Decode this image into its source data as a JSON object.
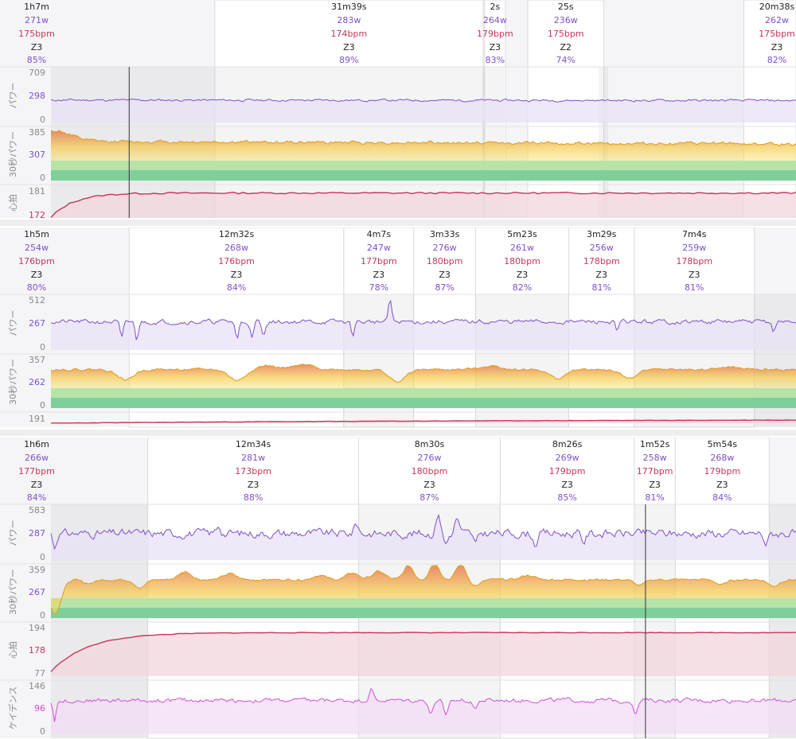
{
  "chart_data": [
    {
      "type": "line",
      "x_range": [
        0,
        100
      ],
      "panel_summary": {
        "duration": "1h7m",
        "power": "271w",
        "hr": "175bpm",
        "zone": "Z3",
        "pct": "85%"
      },
      "laps": [
        {
          "start": 22,
          "end": 58,
          "duration": "31m39s",
          "power": "283w",
          "hr": "174bpm",
          "zone": "Z3",
          "pct": "89%"
        },
        {
          "start": 58.2,
          "end": 61,
          "duration": "2s",
          "power": "264w",
          "hr": "179bpm",
          "zone": "Z3",
          "pct": "83%"
        },
        {
          "start": 64,
          "end": 74.2,
          "duration": "25s",
          "power": "236w",
          "hr": "175bpm",
          "zone": "Z2",
          "pct": "74%"
        },
        {
          "start": 93,
          "end": 100,
          "duration": "20m38s",
          "power": "262w",
          "hr": "175bpm",
          "zone": "Z3",
          "pct": "82%"
        }
      ],
      "shaded_ranges": [
        [
          0,
          60.8
        ],
        [
          73.5,
          74.8
        ]
      ],
      "cursor_x": 10.5,
      "tracks": [
        {
          "id": "power",
          "label": "パワー",
          "ticks": [
            "709",
            "298",
            "0"
          ],
          "ymin": 0,
          "ymax": 709,
          "style": "power",
          "height": 72,
          "series": {
            "base": 294,
            "drift": -6,
            "noise": 12,
            "spikes": [],
            "seed": 11
          }
        },
        {
          "id": "power30",
          "label": "30秒パワー",
          "ticks": [
            "385",
            "307",
            "0"
          ],
          "ymin": 0,
          "ymax": 385,
          "style": "zone",
          "height": 70,
          "series": {
            "base": 288,
            "drift": -20,
            "noise": 9,
            "spikes": [
              [
                0.5,
                78,
                3
              ]
            ],
            "seed": 12
          }
        },
        {
          "id": "hr",
          "label": "心拍",
          "ticks": [
            "181",
            "172"
          ],
          "ymin": 165,
          "ymax": 182,
          "style": "hr",
          "height": 46,
          "series": {
            "start": 166,
            "plateau": 178.5,
            "rise": 3,
            "noise": 0.08,
            "seed": 13
          }
        }
      ]
    },
    {
      "type": "line",
      "x_range": [
        0,
        100
      ],
      "panel_summary": {
        "duration": "1h5m",
        "power": "254w",
        "hr": "176bpm",
        "zone": "Z3",
        "pct": "80%"
      },
      "laps": [
        {
          "start": 10.5,
          "end": 39.3,
          "duration": "12m32s",
          "power": "268w",
          "hr": "176bpm",
          "zone": "Z3",
          "pct": "84%"
        },
        {
          "start": 39.3,
          "end": 48.7,
          "duration": "4m7s",
          "power": "247w",
          "hr": "177bpm",
          "zone": "Z3",
          "pct": "78%"
        },
        {
          "start": 48.7,
          "end": 57,
          "duration": "3m33s",
          "power": "276w",
          "hr": "180bpm",
          "zone": "Z3",
          "pct": "87%"
        },
        {
          "start": 57,
          "end": 69.5,
          "duration": "5m23s",
          "power": "261w",
          "hr": "180bpm",
          "zone": "Z3",
          "pct": "82%"
        },
        {
          "start": 69.5,
          "end": 78.3,
          "duration": "3m29s",
          "power": "256w",
          "hr": "178bpm",
          "zone": "Z3",
          "pct": "81%"
        },
        {
          "start": 78.3,
          "end": 94.4,
          "duration": "7m4s",
          "power": "259w",
          "hr": "178bpm",
          "zone": "Z3",
          "pct": "81%"
        }
      ],
      "shaded_ranges": [
        [
          39.3,
          48.7
        ],
        [
          57,
          69.5
        ],
        [
          78.3,
          100
        ]
      ],
      "tracks": [
        {
          "id": "power",
          "label": "パワー",
          "ticks": [
            "512",
            "267",
            "0"
          ],
          "ymin": 0,
          "ymax": 512,
          "style": "power",
          "height": 72,
          "series": {
            "base": 267,
            "drift": 0,
            "noise": 18,
            "spikes": [
              [
                9.5,
                -170,
                0.3
              ],
              [
                11.5,
                -170,
                0.3
              ],
              [
                25,
                -165,
                0.3
              ],
              [
                27,
                -160,
                0.3
              ],
              [
                28.5,
                -140,
                0.3
              ],
              [
                40.5,
                -120,
                0.3
              ],
              [
                45.5,
                210,
                0.3
              ],
              [
                76,
                -100,
                0.3
              ],
              [
                97,
                -90,
                0.3
              ]
            ],
            "seed": 21
          }
        },
        {
          "id": "power30",
          "label": "30秒パワー",
          "ticks": [
            "357",
            "262",
            "0"
          ],
          "ymin": 0,
          "ymax": 357,
          "style": "zone",
          "height": 70,
          "series": {
            "base": 262,
            "drift": 0,
            "noise": 6,
            "spikes": [
              [
                10,
                -70,
                1.5
              ],
              [
                25,
                -75,
                1.5
              ],
              [
                29,
                25,
                2
              ],
              [
                34,
                30,
                2
              ],
              [
                46.5,
                -85,
                1.5
              ],
              [
                59,
                25,
                2
              ],
              [
                68,
                -60,
                1.5
              ],
              [
                77.5,
                -60,
                1.5
              ],
              [
                91,
                15,
                2
              ]
            ],
            "seed": 22
          }
        },
        {
          "id": "hr",
          "label": "",
          "ticks": [
            "191"
          ],
          "ymin": 170,
          "ymax": 195,
          "style": "hr",
          "height": 16,
          "series": {
            "start": 170,
            "plateau": 180,
            "rise": 60,
            "noise": 0.1,
            "seed": 23
          }
        }
      ]
    },
    {
      "type": "line",
      "x_range": [
        0,
        100
      ],
      "panel_summary": {
        "duration": "1h6m",
        "power": "266w",
        "hr": "177bpm",
        "zone": "Z3",
        "pct": "84%"
      },
      "laps": [
        {
          "start": 13,
          "end": 41.3,
          "duration": "12m34s",
          "power": "281w",
          "hr": "173bpm",
          "zone": "Z3",
          "pct": "88%"
        },
        {
          "start": 41.3,
          "end": 60.3,
          "duration": "8m30s",
          "power": "276w",
          "hr": "180bpm",
          "zone": "Z3",
          "pct": "87%"
        },
        {
          "start": 60.3,
          "end": 78.3,
          "duration": "8m26s",
          "power": "269w",
          "hr": "179bpm",
          "zone": "Z3",
          "pct": "85%"
        },
        {
          "start": 78.3,
          "end": 83.8,
          "duration": "1m52s",
          "power": "258w",
          "hr": "177bpm",
          "zone": "Z3",
          "pct": "81%"
        },
        {
          "start": 83.8,
          "end": 96.4,
          "duration": "5m54s",
          "power": "268w",
          "hr": "179bpm",
          "zone": "Z3",
          "pct": "84%"
        }
      ],
      "shaded_ranges": [
        [
          0,
          13
        ],
        [
          41.3,
          60.3
        ],
        [
          78.3,
          83.8
        ],
        [
          96.4,
          100
        ]
      ],
      "cursor_x": 79.8,
      "tracks": [
        {
          "id": "power",
          "label": "パワー",
          "ticks": [
            "583",
            "287",
            "0"
          ],
          "ymin": 0,
          "ymax": 583,
          "style": "power",
          "height": 72,
          "series": {
            "base": 287,
            "drift": 0,
            "noise": 38,
            "spikes": [
              [
                22.5,
                90,
                0.4
              ],
              [
                41,
                110,
                0.4
              ],
              [
                52,
                230,
                0.4
              ],
              [
                53,
                -110,
                0.4
              ],
              [
                54.5,
                170,
                0.4
              ],
              [
                57,
                -120,
                0.4
              ],
              [
                65,
                -110,
                0.4
              ],
              [
                71.5,
                -90,
                0.4
              ],
              [
                96,
                -110,
                0.4
              ],
              [
                0.5,
                -150,
                0.3
              ]
            ],
            "seed": 31
          }
        },
        {
          "id": "power30",
          "label": "30秒パワー",
          "ticks": [
            "359",
            "267",
            "0"
          ],
          "ymin": 0,
          "ymax": 359,
          "style": "zone",
          "height": 70,
          "series": {
            "base": 263,
            "drift": 0,
            "noise": 6,
            "spikes": [
              [
                0.5,
                -230,
                1.2
              ],
              [
                5,
                -25,
                1.2
              ],
              [
                12,
                -55,
                1
              ],
              [
                18,
                55,
                1.2
              ],
              [
                24,
                40,
                1.2
              ],
              [
                36,
                30,
                1.2
              ],
              [
                40.5,
                45,
                1.2
              ],
              [
                44,
                55,
                1.2
              ],
              [
                48,
                95,
                0.9
              ],
              [
                51.5,
                120,
                0.9
              ],
              [
                55,
                105,
                0.9
              ],
              [
                57,
                -40,
                1
              ],
              [
                64,
                30,
                1.2
              ],
              [
                79,
                -40,
                1
              ],
              [
                90,
                -35,
                1
              ],
              [
                97,
                -45,
                1
              ]
            ],
            "seed": 32
          }
        },
        {
          "id": "hr",
          "label": "心拍",
          "ticks": [
            "194",
            "178",
            "77"
          ],
          "ymin": 77,
          "ymax": 200,
          "style": "hr",
          "height": 70,
          "series": {
            "start": 88,
            "plateau": 179,
            "rise": 5,
            "noise": 0.15,
            "seed": 33
          }
        },
        {
          "id": "cadence",
          "label": "ケイデンス",
          "ticks": [
            "146",
            "96",
            "0"
          ],
          "ymin": 0,
          "ymax": 146,
          "style": "cadence",
          "height": 70,
          "series": {
            "base": 94,
            "drift": 0,
            "noise": 5,
            "spikes": [
              [
                0.5,
                -55,
                0.3
              ],
              [
                43,
                30,
                0.4
              ],
              [
                51,
                -38,
                0.4
              ],
              [
                53,
                -48,
                0.4
              ],
              [
                57,
                -20,
                0.4
              ],
              [
                78.5,
                -35,
                0.4
              ]
            ],
            "seed": 34
          }
        }
      ]
    }
  ]
}
